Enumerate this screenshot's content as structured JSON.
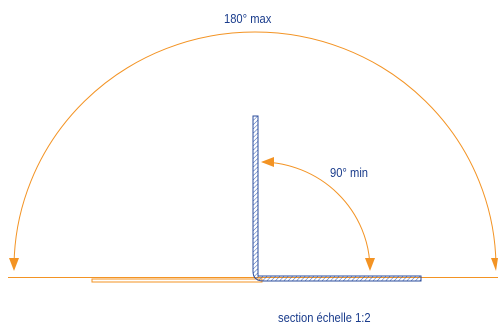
{
  "labels": {
    "max_angle": "180° max",
    "min_angle": "90° min",
    "scale_caption": "section échelle 1:2"
  },
  "colors": {
    "arc": "#f39323",
    "profile_outline": "#2a4b9b",
    "hatch": "#3b63b8",
    "text": "#1a3c8c",
    "background": "#ffffff"
  }
}
